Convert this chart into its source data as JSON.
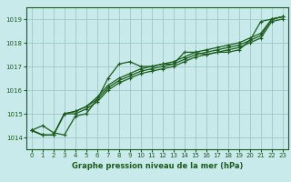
{
  "title": "Graphe pression niveau de la mer (hPa)",
  "bg_color": "#c8eaea",
  "grid_color": "#a0c8c8",
  "line_color": "#1a5c1a",
  "text_color": "#1a5c1a",
  "xlim": [
    -0.5,
    23.5
  ],
  "ylim": [
    1013.5,
    1019.5
  ],
  "yticks": [
    1014,
    1015,
    1016,
    1017,
    1018,
    1019
  ],
  "xticks": [
    0,
    1,
    2,
    3,
    4,
    5,
    6,
    7,
    8,
    9,
    10,
    11,
    12,
    13,
    14,
    15,
    16,
    17,
    18,
    19,
    20,
    21,
    22,
    23
  ],
  "xlabels": [
    "0",
    "1",
    "2",
    "3",
    "4",
    "5",
    "6",
    "7",
    "8",
    "9",
    "10",
    "11",
    "12",
    "13",
    "14",
    "15",
    "16",
    "17",
    "18",
    "19",
    "20",
    "21",
    "22",
    "23"
  ],
  "series": [
    [
      1014.3,
      1014.5,
      1014.2,
      1014.1,
      1014.9,
      1015.0,
      1015.6,
      1016.5,
      1017.1,
      1017.2,
      1017.0,
      1017.0,
      1017.1,
      1017.1,
      1017.6,
      1017.6,
      1017.5,
      1017.6,
      1017.6,
      1017.7,
      1018.1,
      1018.9,
      1019.0,
      1019.1
    ],
    [
      1014.3,
      1014.1,
      1014.1,
      1015.0,
      1015.0,
      1015.2,
      1015.5,
      1016.0,
      1016.3,
      1016.5,
      1016.7,
      1016.8,
      1016.9,
      1017.0,
      1017.2,
      1017.4,
      1017.5,
      1017.6,
      1017.7,
      1017.8,
      1018.0,
      1018.2,
      1018.9,
      1019.0
    ],
    [
      1014.3,
      1014.1,
      1014.1,
      1015.0,
      1015.1,
      1015.3,
      1015.6,
      1016.1,
      1016.4,
      1016.6,
      1016.8,
      1016.9,
      1017.0,
      1017.1,
      1017.3,
      1017.5,
      1017.6,
      1017.7,
      1017.8,
      1017.9,
      1018.1,
      1018.3,
      1019.0,
      1019.1
    ],
    [
      1014.3,
      1014.1,
      1014.1,
      1015.0,
      1015.1,
      1015.3,
      1015.7,
      1016.2,
      1016.5,
      1016.7,
      1016.9,
      1017.0,
      1017.1,
      1017.2,
      1017.4,
      1017.6,
      1017.7,
      1017.8,
      1017.9,
      1018.0,
      1018.2,
      1018.4,
      1019.0,
      1019.1
    ]
  ],
  "figsize": [
    3.2,
    2.0
  ],
  "dpi": 100,
  "xlabel_fontsize": 6,
  "tick_fontsize": 5,
  "linewidth": 0.9,
  "markersize": 2.5
}
